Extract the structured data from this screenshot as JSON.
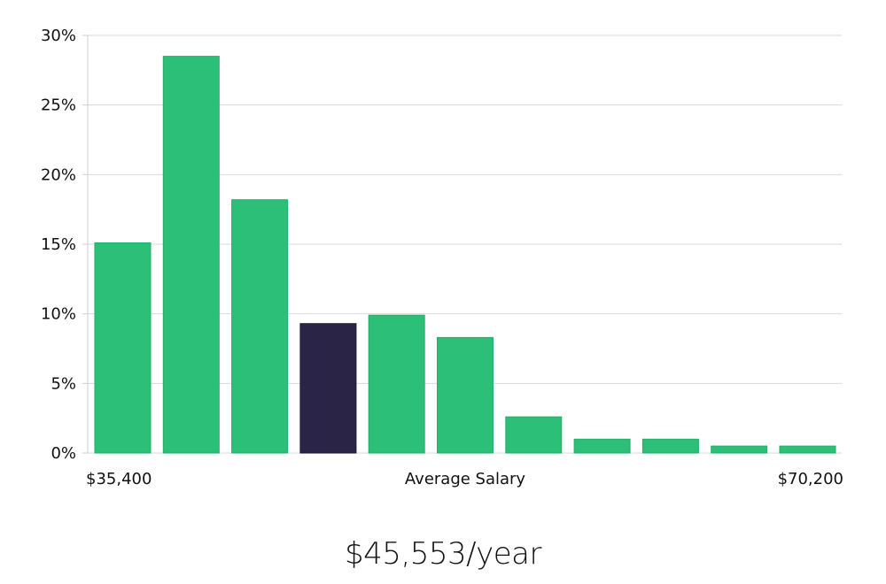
{
  "chart_data": {
    "type": "bar",
    "xlabel": "Average Salary",
    "x_start_label": "$35,400",
    "x_end_label": "$70,200",
    "values": [
      15.1,
      28.5,
      18.2,
      9.3,
      9.9,
      8.3,
      2.6,
      1.0,
      1.0,
      0.5,
      0.5
    ],
    "highlight_index": 3,
    "ylim": [
      0,
      30
    ],
    "yticks": [
      0,
      5,
      10,
      15,
      20,
      25,
      30
    ],
    "ytick_labels": [
      "0%",
      "5%",
      "10%",
      "15%",
      "20%",
      "25%",
      "30%"
    ],
    "grid": true,
    "colors": {
      "bar": "#2bbf77",
      "highlight": "#2a2546"
    }
  },
  "summary": {
    "salary": "$45,553/year"
  }
}
